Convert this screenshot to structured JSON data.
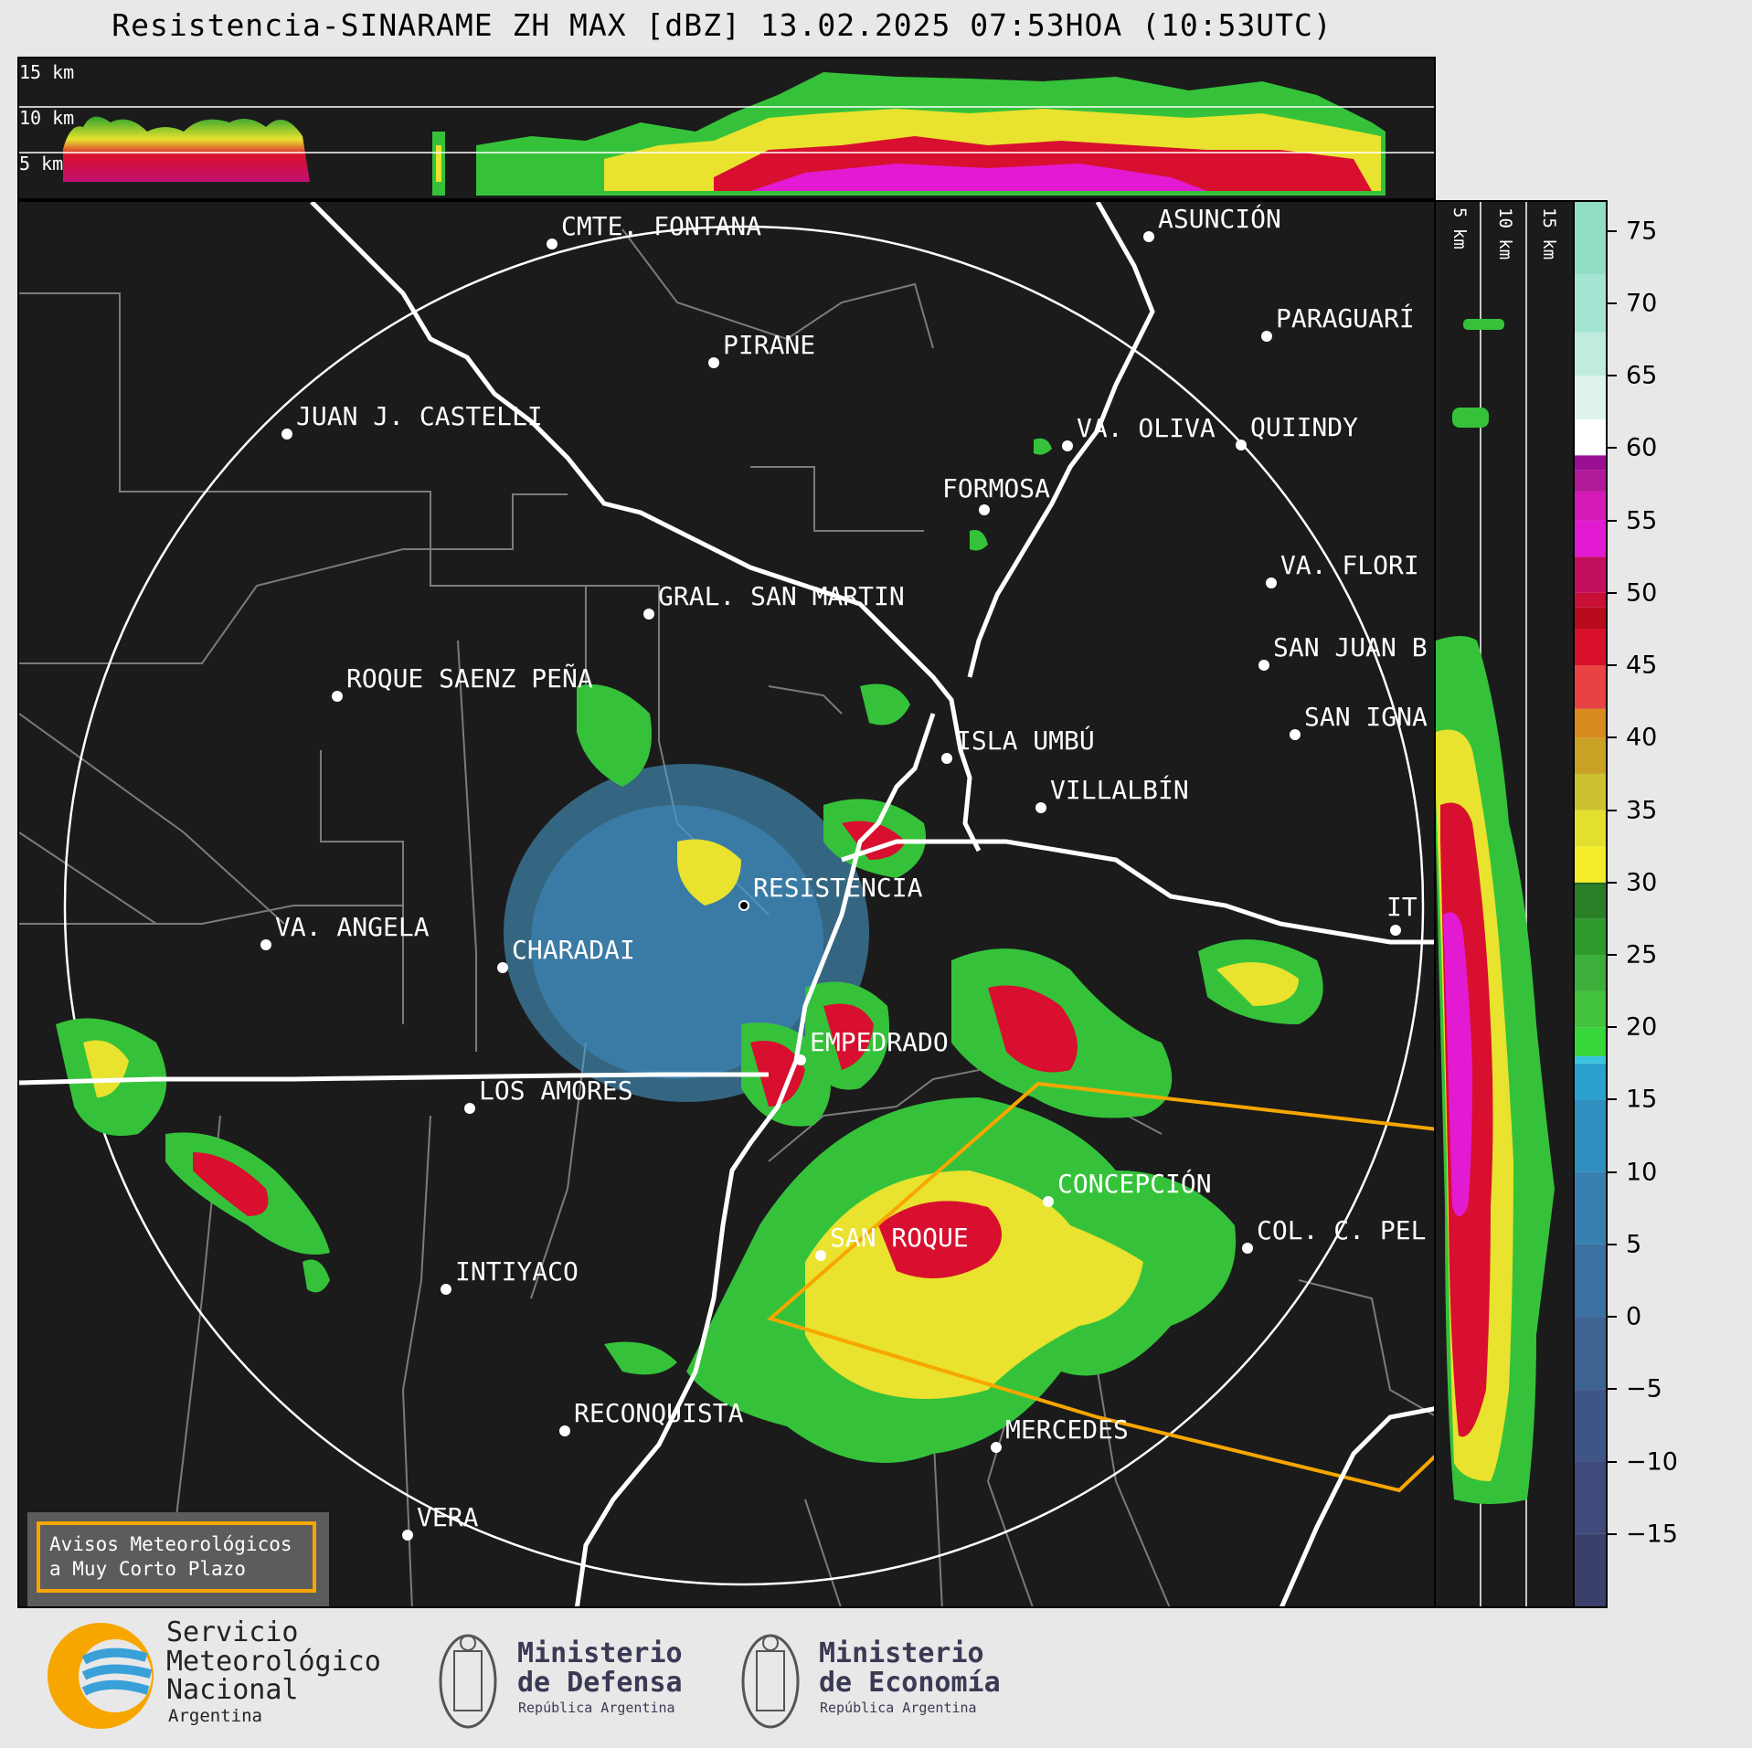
{
  "title": "Resistencia-SINARAME ZH MAX [dBZ] 13.02.2025 07:53HOA (10:53UTC)",
  "top_section": {
    "labels": [
      "15 km",
      "10 km",
      "5 km"
    ]
  },
  "right_section": {
    "labels": [
      "5 km",
      "10 km",
      "15 km"
    ]
  },
  "colorbar": {
    "ticks": [
      "75",
      "70",
      "65",
      "60",
      "55",
      "50",
      "45",
      "40",
      "35",
      "30",
      "25",
      "20",
      "15",
      "10",
      "5",
      "0",
      "−5",
      "−10",
      "−15"
    ],
    "values": [
      75,
      70,
      65,
      60,
      55,
      50,
      45,
      40,
      35,
      30,
      25,
      20,
      15,
      10,
      5,
      0,
      -5,
      -10,
      -15
    ],
    "range": [
      -20,
      77
    ]
  },
  "cities": [
    {
      "name": "CMTE. FONTANA"
    },
    {
      "name": "ASUNCIÓN"
    },
    {
      "name": "PARAGUARÍ"
    },
    {
      "name": "PIRANE"
    },
    {
      "name": "JUAN J. CASTELLI"
    },
    {
      "name": "VA. OLIVA"
    },
    {
      "name": "QUIINDY"
    },
    {
      "name": "FORMOSA"
    },
    {
      "name": "VA. FLORI"
    },
    {
      "name": "GRAL. SAN MARTIN"
    },
    {
      "name": "SAN JUAN B"
    },
    {
      "name": "ROQUE SAENZ PEÑA"
    },
    {
      "name": "SAN IGNA"
    },
    {
      "name": "ISLA UMBÚ"
    },
    {
      "name": "VILLALBÍN"
    },
    {
      "name": "RESISTENCIA"
    },
    {
      "name": "VA. ANGELA"
    },
    {
      "name": "CHARADAI"
    },
    {
      "name": "IT"
    },
    {
      "name": "EMPEDRADO"
    },
    {
      "name": "LOS AMORES"
    },
    {
      "name": "CONCEPCIÓN"
    },
    {
      "name": "SAN ROQUE"
    },
    {
      "name": "COL. C. PEL"
    },
    {
      "name": "INTIYACO"
    },
    {
      "name": "RECONQUISTA"
    },
    {
      "name": "MERCEDES"
    },
    {
      "name": "VERA"
    }
  ],
  "warning_box": {
    "line1": "Avisos Meteorológicos",
    "line2": "a Muy Corto Plazo"
  },
  "logos": {
    "smn": {
      "line1": "Servicio",
      "line2": "Meteorológico",
      "line3": "Nacional",
      "line4": "Argentina"
    },
    "defensa": {
      "line1": "Ministerio",
      "line2": "de Defensa",
      "line3": "República Argentina"
    },
    "economia": {
      "line1": "Ministerio",
      "line2": "de Economía",
      "line3": "República Argentina"
    }
  },
  "colors": {
    "background": "#1b1b1b",
    "warning_polygon": "#f7a600",
    "river": "#ffffff",
    "boundary": "#808080"
  }
}
